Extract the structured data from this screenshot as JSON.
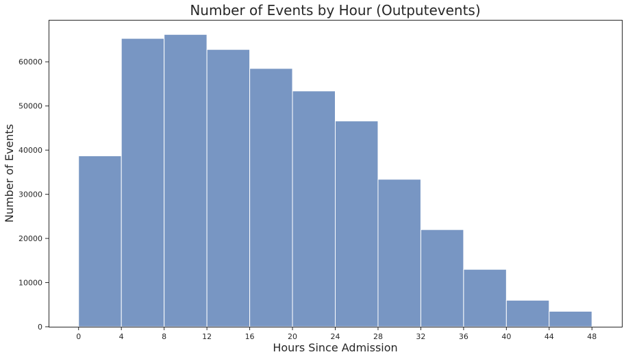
{
  "chart_data": {
    "type": "bar",
    "title": "Number of Events by Hour (Outputevents)",
    "xlabel": "Hours Since Admission",
    "ylabel": "Number of Events",
    "bin_edges": [
      0,
      4,
      8,
      12,
      16,
      20,
      24,
      28,
      32,
      36,
      40,
      44,
      48
    ],
    "values": [
      38700,
      65300,
      66200,
      62800,
      58500,
      53400,
      46600,
      33400,
      22000,
      13000,
      6000,
      3500
    ],
    "xlim": [
      -2.8,
      50.8
    ],
    "ylim": [
      0,
      69500
    ],
    "xticks": [
      0,
      4,
      8,
      12,
      16,
      20,
      24,
      28,
      32,
      36,
      40,
      44,
      48
    ],
    "yticks": [
      0,
      10000,
      20000,
      30000,
      40000,
      50000,
      60000
    ],
    "bar_color": "#7896c3",
    "edge_color": "#ffffff",
    "grid": false
  }
}
